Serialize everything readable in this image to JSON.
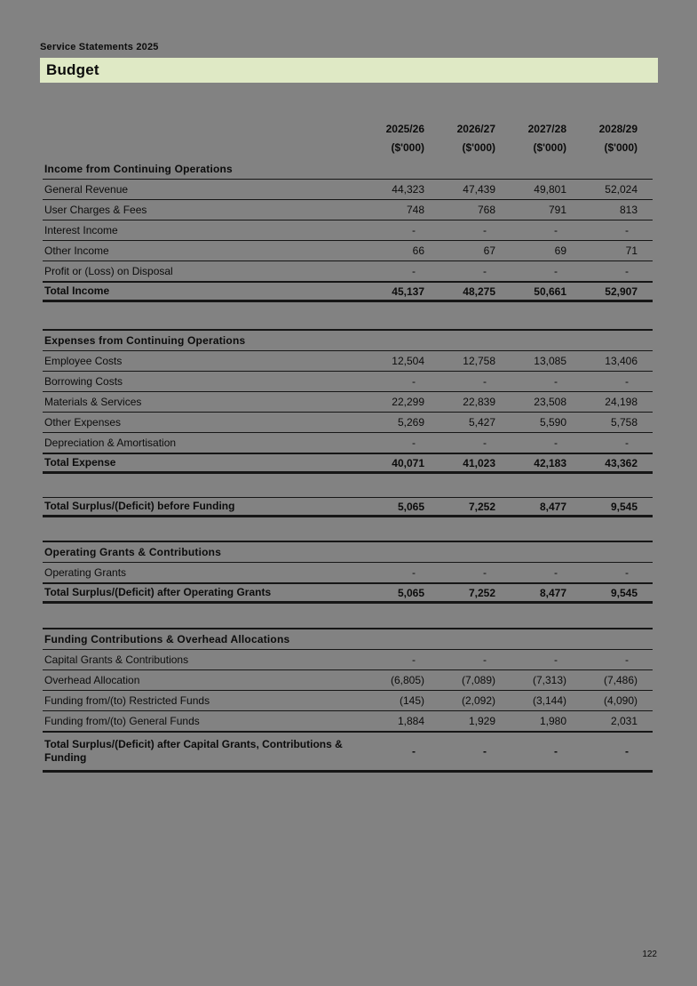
{
  "page": {
    "breadcrumb": "Service Statements 2025",
    "title": "Budget",
    "page_number": "122"
  },
  "colors": {
    "page_background": "#828282",
    "title_bar_background": "#dfe9c5",
    "text": "#0b0b0b",
    "table_lines": "#161616"
  },
  "table": {
    "col_headers": [
      {
        "year": "2025/26",
        "unit": "($'000)"
      },
      {
        "year": "2026/27",
        "unit": "($'000)"
      },
      {
        "year": "2027/28",
        "unit": "($'000)"
      },
      {
        "year": "2028/29",
        "unit": "($'000)"
      }
    ],
    "sections": [
      {
        "header": "Income from Continuing Operations",
        "top_border": false,
        "gap": "",
        "rows": [
          {
            "type": "data",
            "label": "General Revenue",
            "values": [
              "44,323",
              "47,439",
              "49,801",
              "52,024"
            ]
          },
          {
            "type": "data",
            "label": "User Charges & Fees",
            "values": [
              "748",
              "768",
              "791",
              "813"
            ]
          },
          {
            "type": "data",
            "label": "Interest Income",
            "values": [
              "-",
              "-",
              "-",
              "-"
            ]
          },
          {
            "type": "data",
            "label": "Other Income",
            "values": [
              "66",
              "67",
              "69",
              "71"
            ]
          },
          {
            "type": "data",
            "label": "Profit or (Loss) on Disposal",
            "values": [
              "-",
              "-",
              "-",
              "-"
            ]
          },
          {
            "type": "total",
            "label": "Total Income",
            "values": [
              "45,137",
              "48,275",
              "50,661",
              "52,907"
            ]
          }
        ]
      },
      {
        "header": "Expenses from Continuing Operations",
        "top_border": true,
        "gap": "gap-30",
        "rows": [
          {
            "type": "data",
            "label": "Employee Costs",
            "values": [
              "12,504",
              "12,758",
              "13,085",
              "13,406"
            ]
          },
          {
            "type": "data",
            "label": "Borrowing Costs",
            "values": [
              "-",
              "-",
              "-",
              "-"
            ]
          },
          {
            "type": "data",
            "label": "Materials & Services",
            "values": [
              "22,299",
              "22,839",
              "23,508",
              "24,198"
            ]
          },
          {
            "type": "data",
            "label": "Other Expenses",
            "values": [
              "5,269",
              "5,427",
              "5,590",
              "5,758"
            ]
          },
          {
            "type": "data",
            "label": "Depreciation & Amortisation",
            "values": [
              "-",
              "-",
              "-",
              "-"
            ]
          },
          {
            "type": "total",
            "label": "Total Expense",
            "values": [
              "40,071",
              "41,023",
              "42,183",
              "43,362"
            ]
          }
        ]
      },
      {
        "header": "",
        "top_border": false,
        "gap": "gap-26",
        "rows": [
          {
            "type": "total",
            "label": "Total Surplus/(Deficit) before Funding",
            "values": [
              "5,065",
              "7,252",
              "8,477",
              "9,545"
            ]
          }
        ]
      },
      {
        "header": "Operating Grants & Contributions",
        "top_border": true,
        "gap": "gap-26",
        "rows": [
          {
            "type": "data",
            "label": "Operating Grants",
            "values": [
              "-",
              "-",
              "-",
              "-"
            ]
          },
          {
            "type": "total",
            "label": "Total Surplus/(Deficit) after Operating Grants",
            "values": [
              "5,065",
              "7,252",
              "8,477",
              "9,545"
            ]
          }
        ]
      },
      {
        "header": "Funding Contributions & Overhead Allocations",
        "top_border": true,
        "gap": "gap-27",
        "rows": [
          {
            "type": "data",
            "label": "Capital Grants & Contributions",
            "values": [
              "-",
              "-",
              "-",
              "-"
            ]
          },
          {
            "type": "data",
            "label": "Overhead Allocation",
            "values": [
              "(6,805)",
              "(7,089)",
              "(7,313)",
              "(7,486)"
            ]
          },
          {
            "type": "data",
            "label": "Funding from/(to) Restricted Funds",
            "values": [
              "(145)",
              "(2,092)",
              "(3,144)",
              "(4,090)"
            ]
          },
          {
            "type": "data",
            "label": "Funding from/(to) General Funds",
            "values": [
              "1,884",
              "1,929",
              "1,980",
              "2,031"
            ]
          },
          {
            "type": "total-tall",
            "label": "Total Surplus/(Deficit) after Capital Grants, Contributions & Funding",
            "values": [
              "-",
              "-",
              "-",
              "-"
            ]
          }
        ]
      }
    ]
  }
}
